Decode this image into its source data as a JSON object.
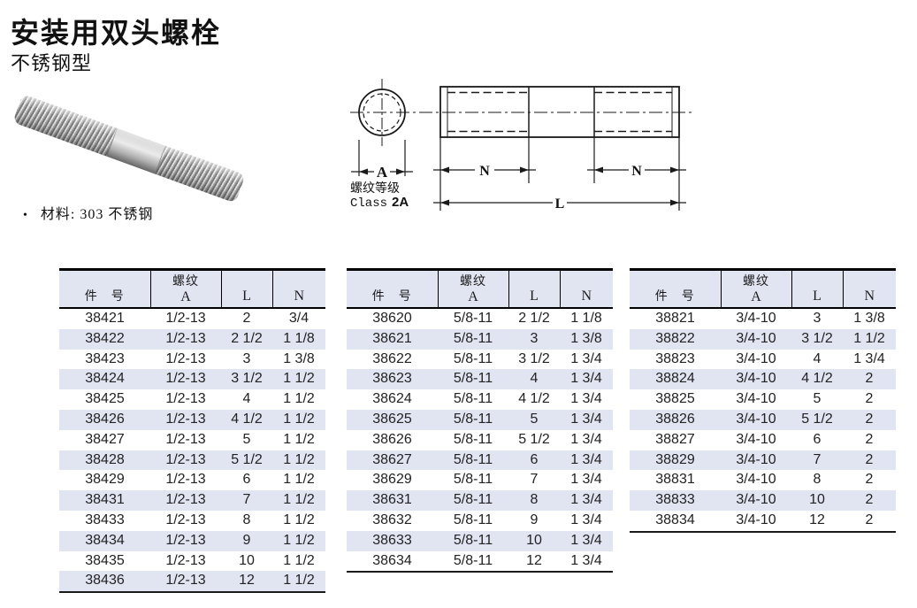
{
  "page": {
    "title": "安装用双头螺栓",
    "subtitle": "不锈钢型",
    "bullet": "•",
    "material_note": "材料: 303 不锈钢"
  },
  "diagram": {
    "thread_class_line1": "螺纹等级",
    "thread_class_word": "Class",
    "thread_class_grade": "2A",
    "dim_a": "A",
    "dim_n_left": "N",
    "dim_n_right": "N",
    "dim_l": "L"
  },
  "tables": [
    {
      "headers": {
        "part": "件　号",
        "thread_top": "螺纹",
        "thread_sub": "A",
        "l": "L",
        "n": "N"
      },
      "rows": [
        [
          "38421",
          "1/2-13",
          "2",
          "3/4"
        ],
        [
          "38422",
          "1/2-13",
          "2 1/2",
          "1 1/8"
        ],
        [
          "38423",
          "1/2-13",
          "3",
          "1 3/8"
        ],
        [
          "38424",
          "1/2-13",
          "3 1/2",
          "1 1/2"
        ],
        [
          "38425",
          "1/2-13",
          "4",
          "1 1/2"
        ],
        [
          "38426",
          "1/2-13",
          "4 1/2",
          "1 1/2"
        ],
        [
          "38427",
          "1/2-13",
          "5",
          "1 1/2"
        ],
        [
          "38428",
          "1/2-13",
          "5 1/2",
          "1 1/2"
        ],
        [
          "38429",
          "1/2-13",
          "6",
          "1 1/2"
        ],
        [
          "38431",
          "1/2-13",
          "7",
          "1 1/2"
        ],
        [
          "38433",
          "1/2-13",
          "8",
          "1 1/2"
        ],
        [
          "38434",
          "1/2-13",
          "9",
          "1 1/2"
        ],
        [
          "38435",
          "1/2-13",
          "10",
          "1 1/2"
        ],
        [
          "38436",
          "1/2-13",
          "12",
          "1 1/2"
        ]
      ]
    },
    {
      "headers": {
        "part": "件　号",
        "thread_top": "螺纹",
        "thread_sub": "A",
        "l": "L",
        "n": "N"
      },
      "rows": [
        [
          "38620",
          "5/8-11",
          "2 1/2",
          "1 1/8"
        ],
        [
          "38621",
          "5/8-11",
          "3",
          "1 3/8"
        ],
        [
          "38622",
          "5/8-11",
          "3 1/2",
          "1 3/4"
        ],
        [
          "38623",
          "5/8-11",
          "4",
          "1 3/4"
        ],
        [
          "38624",
          "5/8-11",
          "4 1/2",
          "1 3/4"
        ],
        [
          "38625",
          "5/8-11",
          "5",
          "1 3/4"
        ],
        [
          "38626",
          "5/8-11",
          "5 1/2",
          "1 3/4"
        ],
        [
          "38627",
          "5/8-11",
          "6",
          "1 3/4"
        ],
        [
          "38629",
          "5/8-11",
          "7",
          "1 3/4"
        ],
        [
          "38631",
          "5/8-11",
          "8",
          "1 3/4"
        ],
        [
          "38632",
          "5/8-11",
          "9",
          "1 3/4"
        ],
        [
          "38633",
          "5/8-11",
          "10",
          "1 3/4"
        ],
        [
          "38634",
          "5/8-11",
          "12",
          "1 3/4"
        ]
      ]
    },
    {
      "headers": {
        "part": "件　号",
        "thread_top": "螺纹",
        "thread_sub": "A",
        "l": "L",
        "n": "N"
      },
      "rows": [
        [
          "38821",
          "3/4-10",
          "3",
          "1 3/8"
        ],
        [
          "38822",
          "3/4-10",
          "3 1/2",
          "1 1/2"
        ],
        [
          "38823",
          "3/4-10",
          "4",
          "1 3/4"
        ],
        [
          "38824",
          "3/4-10",
          "4 1/2",
          "2"
        ],
        [
          "38825",
          "3/4-10",
          "5",
          "2"
        ],
        [
          "38826",
          "3/4-10",
          "5 1/2",
          "2"
        ],
        [
          "38827",
          "3/4-10",
          "6",
          "2"
        ],
        [
          "38829",
          "3/4-10",
          "7",
          "2"
        ],
        [
          "38831",
          "3/4-10",
          "8",
          "2"
        ],
        [
          "38833",
          "3/4-10",
          "10",
          "2"
        ],
        [
          "38834",
          "3/4-10",
          "12",
          "2"
        ]
      ]
    }
  ]
}
